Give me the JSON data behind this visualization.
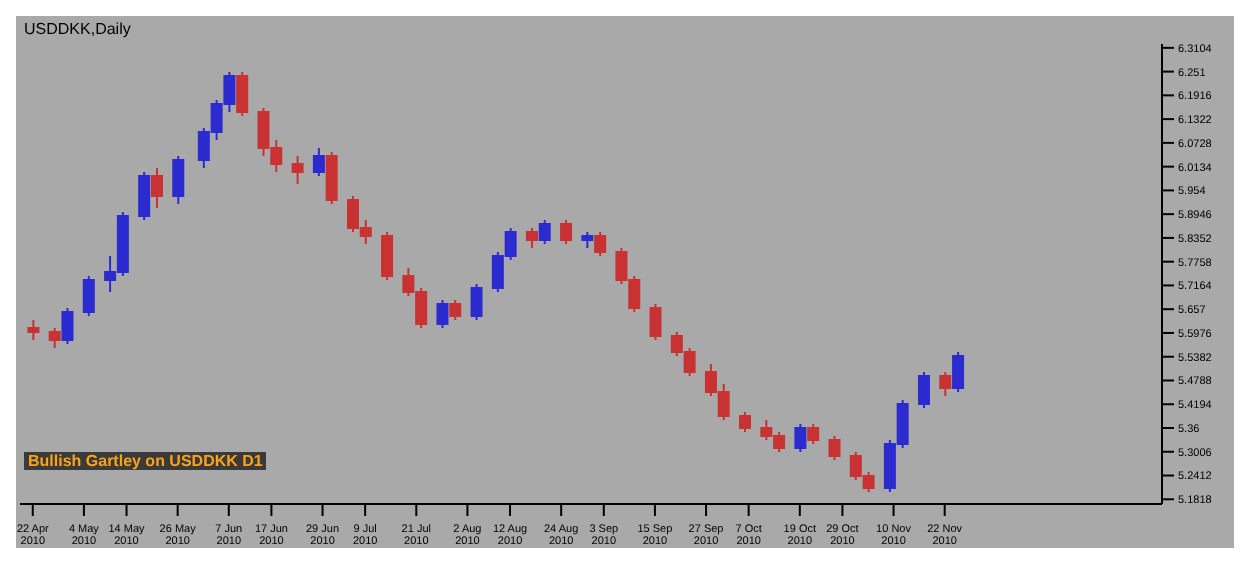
{
  "chart_data": {
    "type": "candlestick",
    "title": "USDDKK,Daily",
    "annotations": [
      "Bullish Gartley on USDDKK D1"
    ],
    "x": [
      "2010-04-22",
      "2010-04-27",
      "2010-04-30",
      "2010-05-05",
      "2010-05-10",
      "2010-05-13",
      "2010-05-18",
      "2010-05-21",
      "2010-05-26",
      "2010-06-01",
      "2010-06-04",
      "2010-06-07",
      "2010-06-10",
      "2010-06-15",
      "2010-06-18",
      "2010-06-23",
      "2010-06-28",
      "2010-07-01",
      "2010-07-06",
      "2010-07-09",
      "2010-07-14",
      "2010-07-19",
      "2010-07-22",
      "2010-07-27",
      "2010-07-30",
      "2010-08-04",
      "2010-08-09",
      "2010-08-12",
      "2010-08-17",
      "2010-08-20",
      "2010-08-25",
      "2010-08-30",
      "2010-09-02",
      "2010-09-07",
      "2010-09-10",
      "2010-09-15",
      "2010-09-20",
      "2010-09-23",
      "2010-09-28",
      "2010-10-01",
      "2010-10-06",
      "2010-10-11",
      "2010-10-14",
      "2010-10-19",
      "2010-10-22",
      "2010-10-27",
      "2010-11-01",
      "2010-11-04",
      "2010-11-09",
      "2010-11-12",
      "2010-11-17",
      "2010-11-22",
      "2010-11-25"
    ],
    "ohlc": [
      [
        5.61,
        5.63,
        5.58,
        5.6
      ],
      [
        5.6,
        5.61,
        5.56,
        5.58
      ],
      [
        5.58,
        5.66,
        5.57,
        5.65
      ],
      [
        5.65,
        5.74,
        5.64,
        5.73
      ],
      [
        5.73,
        5.79,
        5.7,
        5.75
      ],
      [
        5.75,
        5.9,
        5.74,
        5.89
      ],
      [
        5.89,
        6.0,
        5.88,
        5.99
      ],
      [
        5.99,
        6.01,
        5.91,
        5.94
      ],
      [
        5.94,
        6.04,
        5.92,
        6.03
      ],
      [
        6.03,
        6.11,
        6.01,
        6.1
      ],
      [
        6.1,
        6.18,
        6.08,
        6.17
      ],
      [
        6.17,
        6.25,
        6.15,
        6.24
      ],
      [
        6.24,
        6.25,
        6.14,
        6.15
      ],
      [
        6.15,
        6.16,
        6.04,
        6.06
      ],
      [
        6.06,
        6.08,
        6.0,
        6.02
      ],
      [
        6.02,
        6.04,
        5.97,
        6.0
      ],
      [
        6.0,
        6.06,
        5.99,
        6.04
      ],
      [
        6.04,
        6.05,
        5.92,
        5.93
      ],
      [
        5.93,
        5.94,
        5.85,
        5.86
      ],
      [
        5.86,
        5.88,
        5.82,
        5.84
      ],
      [
        5.84,
        5.85,
        5.73,
        5.74
      ],
      [
        5.74,
        5.76,
        5.69,
        5.7
      ],
      [
        5.7,
        5.71,
        5.61,
        5.62
      ],
      [
        5.62,
        5.68,
        5.61,
        5.67
      ],
      [
        5.67,
        5.68,
        5.63,
        5.64
      ],
      [
        5.64,
        5.72,
        5.63,
        5.71
      ],
      [
        5.71,
        5.8,
        5.7,
        5.79
      ],
      [
        5.79,
        5.86,
        5.78,
        5.85
      ],
      [
        5.85,
        5.86,
        5.81,
        5.83
      ],
      [
        5.83,
        5.88,
        5.82,
        5.87
      ],
      [
        5.87,
        5.88,
        5.82,
        5.83
      ],
      [
        5.83,
        5.85,
        5.81,
        5.84
      ],
      [
        5.84,
        5.85,
        5.79,
        5.8
      ],
      [
        5.8,
        5.81,
        5.72,
        5.73
      ],
      [
        5.73,
        5.74,
        5.65,
        5.66
      ],
      [
        5.66,
        5.67,
        5.58,
        5.59
      ],
      [
        5.59,
        5.6,
        5.54,
        5.55
      ],
      [
        5.55,
        5.56,
        5.49,
        5.5
      ],
      [
        5.5,
        5.52,
        5.44,
        5.45
      ],
      [
        5.45,
        5.47,
        5.38,
        5.39
      ],
      [
        5.39,
        5.4,
        5.35,
        5.36
      ],
      [
        5.36,
        5.38,
        5.33,
        5.34
      ],
      [
        5.34,
        5.35,
        5.3,
        5.31
      ],
      [
        5.31,
        5.37,
        5.3,
        5.36
      ],
      [
        5.36,
        5.37,
        5.32,
        5.33
      ],
      [
        5.33,
        5.34,
        5.28,
        5.29
      ],
      [
        5.29,
        5.3,
        5.23,
        5.24
      ],
      [
        5.24,
        5.25,
        5.2,
        5.21
      ],
      [
        5.21,
        5.33,
        5.2,
        5.32
      ],
      [
        5.32,
        5.43,
        5.31,
        5.42
      ],
      [
        5.42,
        5.5,
        5.41,
        5.49
      ],
      [
        5.49,
        5.5,
        5.44,
        5.46
      ],
      [
        5.46,
        5.55,
        5.45,
        5.54
      ]
    ],
    "colors": [
      "#c83232",
      "#c83232",
      "#2b2bd0",
      "#2b2bd0",
      "#2b2bd0",
      "#2b2bd0",
      "#2b2bd0",
      "#c83232",
      "#2b2bd0",
      "#2b2bd0",
      "#2b2bd0",
      "#2b2bd0",
      "#c83232",
      "#c83232",
      "#c83232",
      "#c83232",
      "#2b2bd0",
      "#c83232",
      "#c83232",
      "#c83232",
      "#c83232",
      "#c83232",
      "#c83232",
      "#2b2bd0",
      "#c83232",
      "#2b2bd0",
      "#2b2bd0",
      "#2b2bd0",
      "#c83232",
      "#2b2bd0",
      "#c83232",
      "#2b2bd0",
      "#c83232",
      "#c83232",
      "#c83232",
      "#c83232",
      "#c83232",
      "#c83232",
      "#c83232",
      "#c83232",
      "#c83232",
      "#c83232",
      "#c83232",
      "#2b2bd0",
      "#c83232",
      "#c83232",
      "#c83232",
      "#c83232",
      "#2b2bd0",
      "#2b2bd0",
      "#2b2bd0",
      "#c83232",
      "#2b2bd0"
    ],
    "xlim": [
      "2010-04-19",
      "2011-01-12"
    ],
    "xticks": [
      {
        "value": "2010-04-22",
        "label": "22 Apr 2010"
      },
      {
        "value": "2010-05-04",
        "label": "4 May 2010"
      },
      {
        "value": "2010-05-14",
        "label": "14 May 2010"
      },
      {
        "value": "2010-05-26",
        "label": "26 May 2010"
      },
      {
        "value": "2010-06-07",
        "label": "7 Jun 2010"
      },
      {
        "value": "2010-06-17",
        "label": "17 Jun 2010"
      },
      {
        "value": "2010-06-29",
        "label": "29 Jun 2010"
      },
      {
        "value": "2010-07-09",
        "label": "9 Jul 2010"
      },
      {
        "value": "2010-07-21",
        "label": "21 Jul 2010"
      },
      {
        "value": "2010-08-02",
        "label": "2 Aug 2010"
      },
      {
        "value": "2010-08-12",
        "label": "12 Aug 2010"
      },
      {
        "value": "2010-08-24",
        "label": "24 Aug 2010"
      },
      {
        "value": "2010-09-03",
        "label": "3 Sep 2010"
      },
      {
        "value": "2010-09-15",
        "label": "15 Sep 2010"
      },
      {
        "value": "2010-09-27",
        "label": "27 Sep 2010"
      },
      {
        "value": "2010-10-07",
        "label": "7 Oct 2010"
      },
      {
        "value": "2010-10-19",
        "label": "19 Oct 2010"
      },
      {
        "value": "2010-10-29",
        "label": "29 Oct 2010"
      },
      {
        "value": "2010-11-10",
        "label": "10 Nov 2010"
      },
      {
        "value": "2010-11-22",
        "label": "22 Nov 2010"
      }
    ],
    "ylim": [
      5.17,
      6.32
    ],
    "yticks": [
      6.3104,
      6.251,
      6.1916,
      6.1322,
      6.0728,
      6.0134,
      5.954,
      5.8946,
      5.8352,
      5.7758,
      5.7164,
      5.657,
      5.5976,
      5.5382,
      5.4788,
      5.4194,
      5.36,
      5.3006,
      5.2412,
      5.1818
    ],
    "tick_labels": true
  }
}
